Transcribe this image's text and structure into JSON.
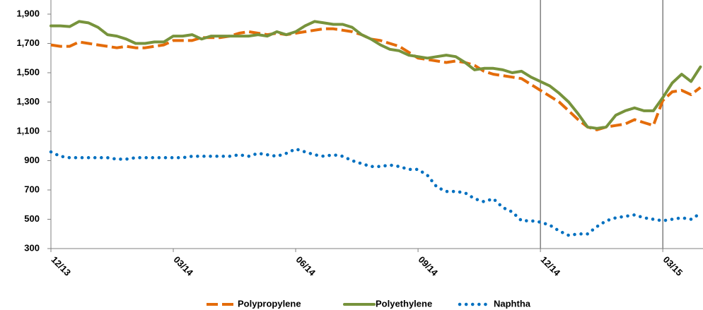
{
  "chart_data": {
    "type": "line",
    "categories": [
      "12/13",
      null,
      null,
      null,
      null,
      null,
      null,
      null,
      null,
      null,
      null,
      null,
      null,
      "03/14",
      null,
      null,
      null,
      null,
      null,
      null,
      null,
      null,
      null,
      null,
      null,
      null,
      "06/14",
      null,
      null,
      null,
      null,
      null,
      null,
      null,
      null,
      null,
      null,
      null,
      null,
      "09/14",
      null,
      null,
      null,
      null,
      null,
      null,
      null,
      null,
      null,
      null,
      null,
      null,
      "12/14",
      null,
      null,
      null,
      null,
      null,
      null,
      null,
      null,
      null,
      null,
      null,
      null,
      "03/15",
      null,
      null,
      null,
      null
    ],
    "series": [
      {
        "name": "Polypropylene",
        "color": "#e46c0a",
        "style": "dashed",
        "values": [
          1690,
          1680,
          1680,
          1710,
          1700,
          1690,
          1680,
          1670,
          1680,
          1670,
          1670,
          1680,
          1690,
          1720,
          1720,
          1720,
          1740,
          1740,
          1740,
          1750,
          1770,
          1780,
          1770,
          1760,
          1770,
          1760,
          1770,
          1780,
          1790,
          1800,
          1800,
          1790,
          1780,
          1760,
          1730,
          1720,
          1700,
          1680,
          1640,
          1600,
          1590,
          1580,
          1570,
          1580,
          1570,
          1550,
          1510,
          1490,
          1480,
          1470,
          1460,
          1420,
          1380,
          1340,
          1300,
          1240,
          1180,
          1130,
          1110,
          1130,
          1140,
          1150,
          1180,
          1160,
          1140,
          1310,
          1370,
          1380,
          1350,
          1400
        ]
      },
      {
        "name": "Polyethylene",
        "color": "#77933c",
        "style": "solid",
        "values": [
          1820,
          1820,
          1815,
          1850,
          1840,
          1810,
          1760,
          1750,
          1730,
          1700,
          1700,
          1710,
          1710,
          1750,
          1750,
          1760,
          1730,
          1750,
          1750,
          1750,
          1750,
          1750,
          1760,
          1750,
          1780,
          1760,
          1780,
          1820,
          1850,
          1840,
          1830,
          1830,
          1810,
          1760,
          1730,
          1690,
          1660,
          1650,
          1620,
          1610,
          1600,
          1610,
          1620,
          1610,
          1570,
          1520,
          1530,
          1530,
          1520,
          1500,
          1510,
          1470,
          1440,
          1410,
          1360,
          1300,
          1220,
          1130,
          1120,
          1130,
          1210,
          1240,
          1260,
          1240,
          1240,
          1330,
          1430,
          1490,
          1440,
          1540
        ]
      },
      {
        "name": "Naphtha",
        "color": "#0070c0",
        "style": "dotted",
        "values": [
          960,
          930,
          920,
          920,
          920,
          920,
          920,
          910,
          910,
          920,
          920,
          920,
          920,
          920,
          920,
          930,
          930,
          930,
          930,
          930,
          940,
          930,
          950,
          940,
          930,
          950,
          980,
          960,
          940,
          930,
          940,
          930,
          900,
          880,
          860,
          860,
          870,
          860,
          840,
          840,
          800,
          720,
          690,
          690,
          680,
          640,
          620,
          640,
          580,
          550,
          490,
          490,
          480,
          460,
          420,
          390,
          400,
          400,
          450,
          490,
          510,
          520,
          530,
          510,
          500,
          490,
          500,
          510,
          500,
          540
        ]
      }
    ],
    "ylim": [
      300,
      1900
    ],
    "yticks": [
      300,
      500,
      700,
      900,
      {
        "value": 1100,
        "label": "1,100"
      },
      {
        "value": 1300,
        "label": "1,300"
      },
      {
        "value": 1500,
        "label": "1,500"
      },
      {
        "value": 1700,
        "label": "1,700"
      },
      {
        "value": 1900,
        "label": "1,900"
      }
    ],
    "vertical_lines_at": [
      "12/14",
      "03/15"
    ],
    "legend": "bottom"
  }
}
